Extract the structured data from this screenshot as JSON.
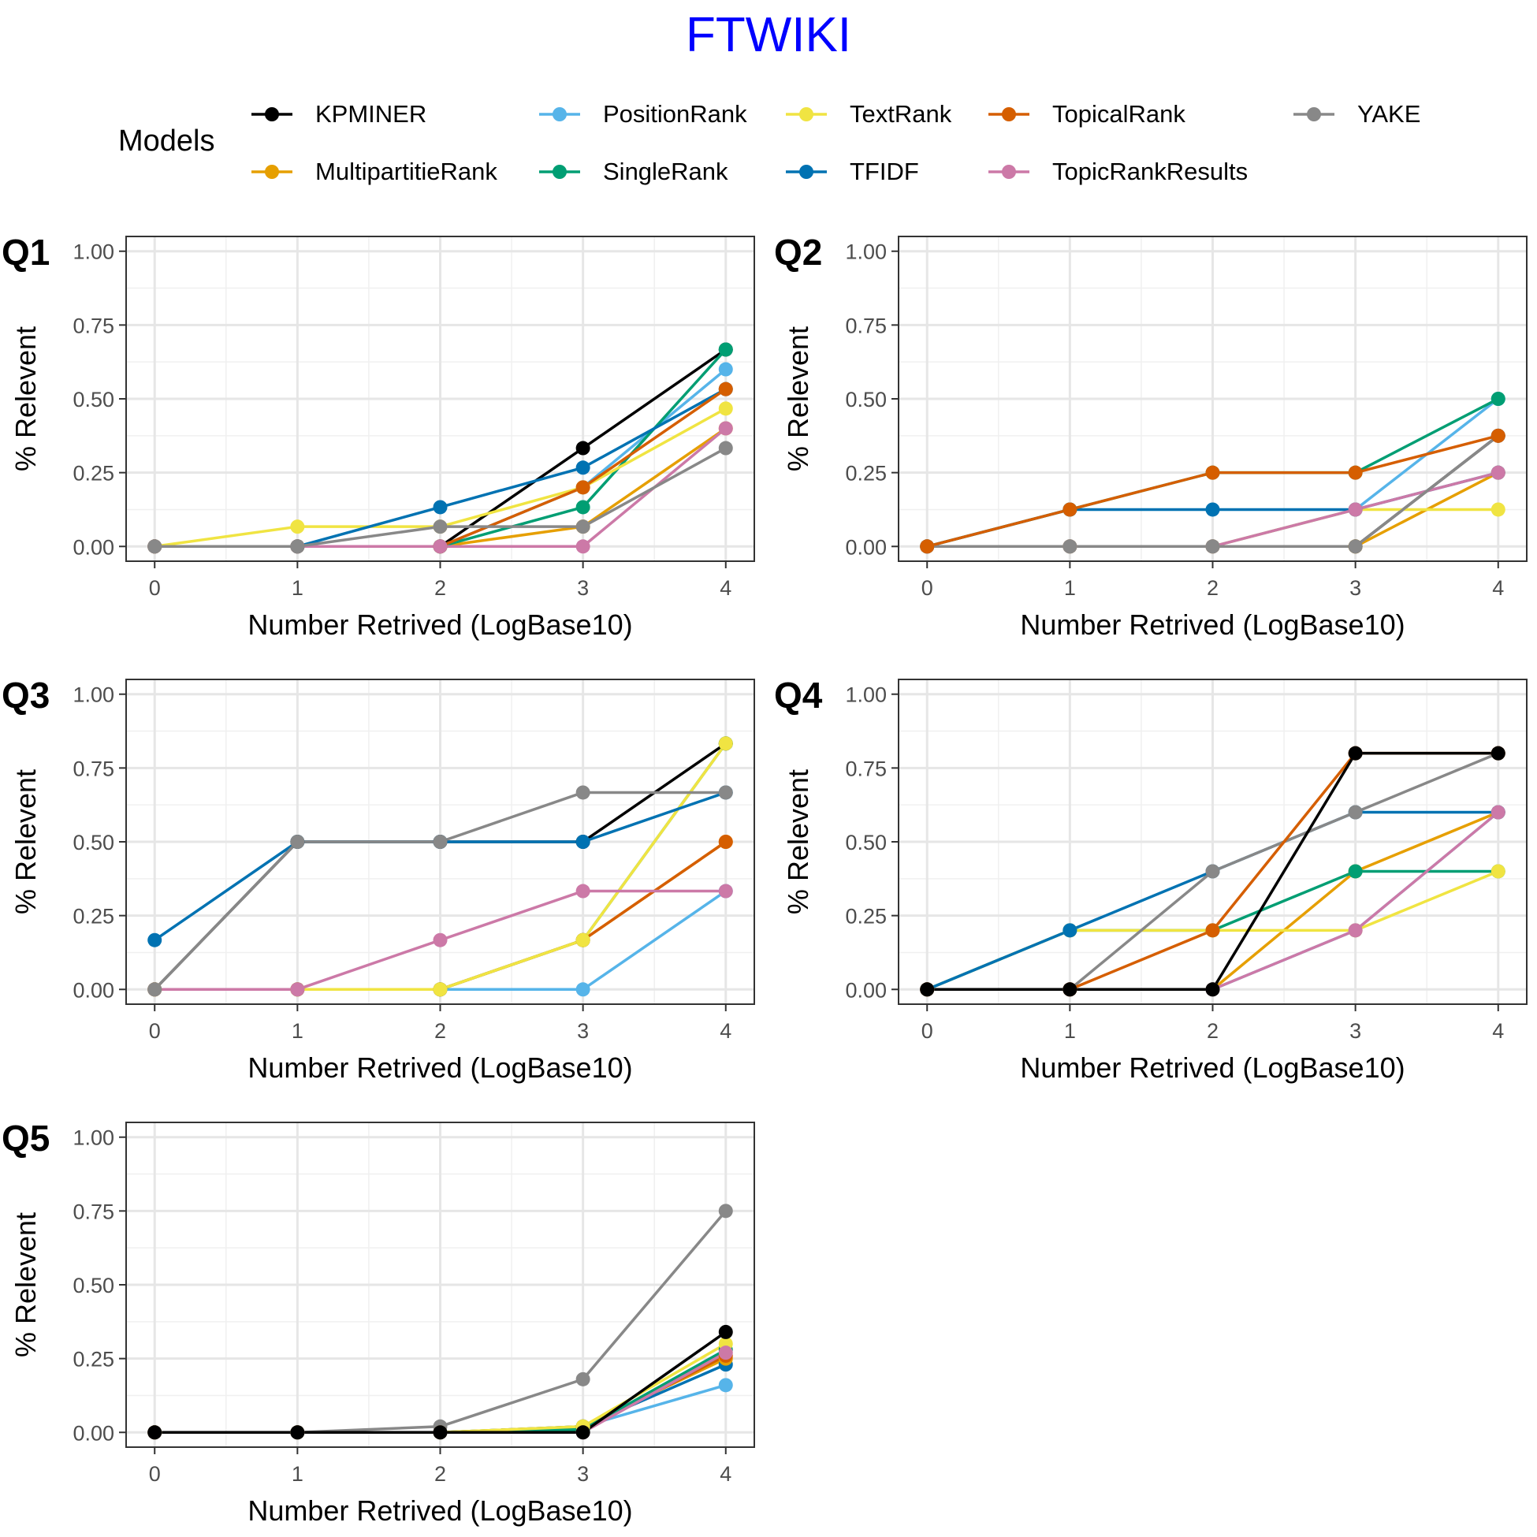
{
  "title": "FTWIKI",
  "legend": {
    "title": "Models",
    "placement": "top"
  },
  "colors": {
    "KPMINER": "#000000",
    "MultipartitieRank": "#E69F00",
    "PositionRank": "#56B4E9",
    "SingleRank": "#009E73",
    "TextRank": "#F0E442",
    "TFIDF": "#0072B2",
    "TopicalRank": "#D55E00",
    "TopicRankResults": "#CC79A7",
    "YAKE": "#888888"
  },
  "chart_data": [
    {
      "type": "line",
      "panel_label": "Q1",
      "xlabel": "Number Retrived (LogBase10)",
      "ylabel": "% Relevent",
      "xlim": [
        0,
        4
      ],
      "ylim": [
        0,
        1
      ],
      "x_ticks": [
        "0",
        "1",
        "2",
        "3",
        "4"
      ],
      "y_ticks": [
        "0.00",
        "0.25",
        "0.50",
        "0.75",
        "1.00"
      ],
      "grid": true,
      "x": [
        0,
        1,
        2,
        3,
        4
      ],
      "series": [
        {
          "name": "KPMINER",
          "values": [
            0,
            0,
            0,
            0.333,
            0.667
          ]
        },
        {
          "name": "MultipartitieRank",
          "values": [
            0,
            0,
            0,
            0.067,
            0.4
          ]
        },
        {
          "name": "PositionRank",
          "values": [
            0,
            0,
            0,
            0.2,
            0.6
          ]
        },
        {
          "name": "SingleRank",
          "values": [
            0,
            0,
            0,
            0.133,
            0.667
          ]
        },
        {
          "name": "TextRank",
          "values": [
            0,
            0.067,
            0.067,
            0.2,
            0.467
          ]
        },
        {
          "name": "TFIDF",
          "values": [
            0,
            0,
            0.133,
            0.267,
            0.533
          ]
        },
        {
          "name": "TopicalRank",
          "values": [
            0,
            0,
            0,
            0.2,
            0.533
          ]
        },
        {
          "name": "TopicRankResults",
          "values": [
            0,
            0,
            0,
            0,
            0.4
          ]
        },
        {
          "name": "YAKE",
          "values": [
            0,
            0,
            0.067,
            0.067,
            0.333
          ]
        }
      ]
    },
    {
      "type": "line",
      "panel_label": "Q2",
      "xlabel": "Number Retrived (LogBase10)",
      "ylabel": "% Relevent",
      "xlim": [
        0,
        4
      ],
      "ylim": [
        0,
        1
      ],
      "x_ticks": [
        "0",
        "1",
        "2",
        "3",
        "4"
      ],
      "y_ticks": [
        "0.00",
        "0.25",
        "0.50",
        "0.75",
        "1.00"
      ],
      "grid": true,
      "x": [
        0,
        1,
        2,
        3,
        4
      ],
      "series": [
        {
          "name": "KPMINER",
          "values": [
            0,
            0,
            0,
            0,
            0.375
          ]
        },
        {
          "name": "MultipartitieRank",
          "values": [
            0,
            0,
            0,
            0,
            0.25
          ]
        },
        {
          "name": "PositionRank",
          "values": [
            0,
            0,
            0,
            0.125,
            0.5
          ]
        },
        {
          "name": "SingleRank",
          "values": [
            0,
            0.125,
            0.25,
            0.25,
            0.5
          ]
        },
        {
          "name": "TextRank",
          "values": [
            0,
            0,
            0,
            0.125,
            0.125
          ]
        },
        {
          "name": "TFIDF",
          "values": [
            0,
            0.125,
            0.125,
            0.125,
            0.25
          ]
        },
        {
          "name": "TopicRankResults",
          "values": [
            0,
            0,
            0,
            0.125,
            0.25
          ]
        },
        {
          "name": "YAKE",
          "values": [
            0,
            0,
            0,
            0,
            0.375
          ]
        },
        {
          "name": "TopicalRank",
          "values": [
            0,
            0.125,
            0.25,
            0.25,
            0.375
          ]
        }
      ]
    },
    {
      "type": "line",
      "panel_label": "Q3",
      "xlabel": "Number Retrived (LogBase10)",
      "ylabel": "% Relevent",
      "xlim": [
        0,
        4
      ],
      "ylim": [
        0,
        1
      ],
      "x_ticks": [
        "0",
        "1",
        "2",
        "3",
        "4"
      ],
      "y_ticks": [
        "0.00",
        "0.25",
        "0.50",
        "0.75",
        "1.00"
      ],
      "grid": true,
      "x": [
        0,
        1,
        2,
        3,
        4
      ],
      "series": [
        {
          "name": "KPMINER",
          "values": [
            0,
            0.5,
            0.5,
            0.5,
            0.833
          ]
        },
        {
          "name": "MultipartitieRank",
          "values": [
            0,
            0,
            0,
            0.167,
            0.5
          ]
        },
        {
          "name": "PositionRank",
          "values": [
            0,
            0,
            0,
            0,
            0.333
          ]
        },
        {
          "name": "SingleRank",
          "values": [
            0,
            0,
            0,
            0.167,
            0.833
          ]
        },
        {
          "name": "TopicalRank",
          "values": [
            0,
            0,
            0,
            0.167,
            0.5
          ]
        },
        {
          "name": "TextRank",
          "values": [
            0,
            0,
            0,
            0.167,
            0.833
          ]
        },
        {
          "name": "TFIDF",
          "values": [
            0.167,
            0.5,
            0.5,
            0.5,
            0.667
          ]
        },
        {
          "name": "TopicRankResults",
          "values": [
            0,
            0,
            0.167,
            0.333,
            0.333
          ]
        },
        {
          "name": "YAKE",
          "values": [
            0,
            0.5,
            0.5,
            0.667,
            0.667
          ]
        }
      ]
    },
    {
      "type": "line",
      "panel_label": "Q4",
      "xlabel": "Number Retrived (LogBase10)",
      "ylabel": "% Relevent",
      "xlim": [
        0,
        4
      ],
      "ylim": [
        0,
        1
      ],
      "x_ticks": [
        "0",
        "1",
        "2",
        "3",
        "4"
      ],
      "y_ticks": [
        "0.00",
        "0.25",
        "0.50",
        "0.75",
        "1.00"
      ],
      "grid": true,
      "x": [
        0,
        1,
        2,
        3,
        4
      ],
      "series": [
        {
          "name": "MultipartitieRank",
          "values": [
            0,
            0,
            0,
            0.4,
            0.6
          ]
        },
        {
          "name": "PositionRank",
          "values": [
            0,
            0,
            0,
            0.2,
            0.6
          ]
        },
        {
          "name": "SingleRank",
          "values": [
            0,
            0.2,
            0.2,
            0.4,
            0.4
          ]
        },
        {
          "name": "TextRank",
          "values": [
            0,
            0.2,
            0.2,
            0.2,
            0.4
          ]
        },
        {
          "name": "TFIDF",
          "values": [
            0,
            0.2,
            0.4,
            0.6,
            0.6
          ]
        },
        {
          "name": "TopicRankResults",
          "values": [
            0,
            0,
            0,
            0.2,
            0.6
          ]
        },
        {
          "name": "YAKE",
          "values": [
            0,
            0,
            0.4,
            0.6,
            0.8
          ]
        },
        {
          "name": "TopicalRank",
          "values": [
            0,
            0,
            0.2,
            0.8,
            0.8
          ]
        },
        {
          "name": "KPMINER",
          "values": [
            0,
            0,
            0,
            0.8,
            0.8
          ]
        }
      ]
    },
    {
      "type": "line",
      "panel_label": "Q5",
      "xlabel": "Number Retrived (LogBase10)",
      "ylabel": "% Relevent",
      "xlim": [
        0,
        4
      ],
      "ylim": [
        0,
        1
      ],
      "x_ticks": [
        "0",
        "1",
        "2",
        "3",
        "4"
      ],
      "y_ticks": [
        "0.00",
        "0.25",
        "0.50",
        "0.75",
        "1.00"
      ],
      "grid": true,
      "x": [
        0,
        1,
        2,
        3,
        4
      ],
      "series": [
        {
          "name": "YAKE",
          "values": [
            0,
            0,
            0.02,
            0.18,
            0.75
          ]
        },
        {
          "name": "PositionRank",
          "values": [
            0,
            0,
            0,
            0.02,
            0.16
          ]
        },
        {
          "name": "TFIDF",
          "values": [
            0,
            0,
            0,
            0.02,
            0.23
          ]
        },
        {
          "name": "MultipartitieRank",
          "values": [
            0,
            0,
            0,
            0.02,
            0.25
          ]
        },
        {
          "name": "TopicalRank",
          "values": [
            0,
            0,
            0,
            0.01,
            0.26
          ]
        },
        {
          "name": "SingleRank",
          "values": [
            0,
            0,
            0,
            0.01,
            0.28
          ]
        },
        {
          "name": "TextRank",
          "values": [
            0,
            0,
            0,
            0.02,
            0.3
          ]
        },
        {
          "name": "TopicRankResults",
          "values": [
            0,
            0,
            0,
            0,
            0.27
          ]
        },
        {
          "name": "KPMINER",
          "values": [
            0,
            0,
            0,
            0,
            0.34
          ]
        }
      ]
    }
  ]
}
